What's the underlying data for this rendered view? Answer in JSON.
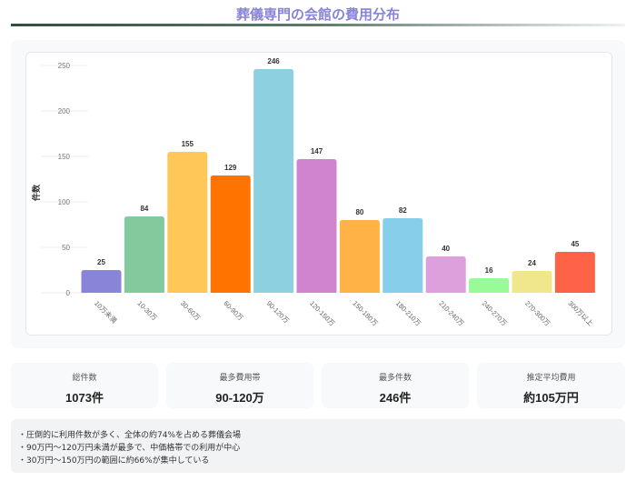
{
  "title": "葬儀専門の会館の費用分布",
  "chart_data": {
    "type": "bar",
    "ylabel": "件数",
    "ylim": [
      0,
      250
    ],
    "yticks": [
      0,
      50,
      100,
      150,
      200,
      250
    ],
    "categories": [
      "10万未満",
      "10-30万",
      "30-60万",
      "60-90万",
      "90-120万",
      "120-150万",
      "150-180万",
      "180-210万",
      "210-240万",
      "240-270万",
      "270-300万",
      "300万以上"
    ],
    "values": [
      25,
      84,
      155,
      129,
      246,
      147,
      80,
      82,
      40,
      16,
      24,
      45
    ],
    "colors": [
      "#8884d8",
      "#82ca9d",
      "#ffc658",
      "#ff7300",
      "#8dd1e1",
      "#d084d0",
      "#ffb347",
      "#87ceeb",
      "#dda0dd",
      "#98fb98",
      "#f0e68c",
      "#ff6347"
    ]
  },
  "stats": [
    {
      "label": "総件数",
      "value": "1073件"
    },
    {
      "label": "最多費用帯",
      "value": "90-120万"
    },
    {
      "label": "最多件数",
      "value": "246件"
    },
    {
      "label": "推定平均費用",
      "value": "約105万円"
    }
  ],
  "notes": [
    "・圧倒的に利用件数が多く、全体の約74%を占める葬儀会場",
    "・90万円〜120万円未満が最多で、中価格帯での利用が中心",
    "・30万円〜150万円の範囲に約66%が集中している"
  ]
}
